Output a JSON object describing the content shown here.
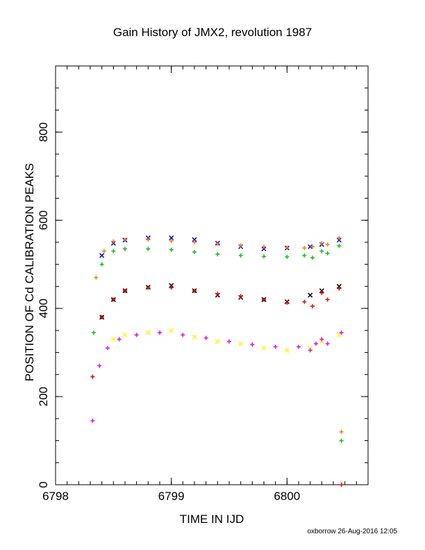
{
  "chart_data": {
    "type": "scatter",
    "title": "Gain History of JMX2, revolution 1987",
    "xlabel": "TIME IN IJD",
    "ylabel": "POSITION OF Cd CALIBRATION PEAKS",
    "xlim": [
      6798,
      6800.7
    ],
    "ylim": [
      0,
      950
    ],
    "xticks": [
      "6798",
      "6799",
      "6800"
    ],
    "yticks": [
      "0",
      "200",
      "400",
      "600",
      "800"
    ],
    "grid": false,
    "legend": "none",
    "series": [
      {
        "color": "#0000ff",
        "marker": "x",
        "x": [
          6798.4,
          6798.5,
          6798.6,
          6798.8,
          6799.0,
          6799.2,
          6799.4,
          6799.6,
          6799.8,
          6800.0,
          6800.2,
          6800.3,
          6800.45
        ],
        "y": [
          520,
          548,
          555,
          560,
          560,
          556,
          548,
          540,
          535,
          537,
          540,
          545,
          555
        ]
      },
      {
        "color": "#ff8000",
        "marker": "+",
        "x": [
          6798.35,
          6798.42,
          6798.5,
          6798.6,
          6798.8,
          6799.0,
          6799.2,
          6799.4,
          6799.6,
          6799.8,
          6800.0,
          6800.15,
          6800.22,
          6800.3,
          6800.35,
          6800.45,
          6800.47
        ],
        "y": [
          470,
          530,
          552,
          556,
          556,
          553,
          550,
          547,
          543,
          540,
          538,
          537,
          540,
          548,
          545,
          560,
          120
        ]
      },
      {
        "color": "#00cc00",
        "marker": "+",
        "x": [
          6798.33,
          6798.4,
          6798.5,
          6798.6,
          6798.8,
          6799.0,
          6799.2,
          6799.4,
          6799.6,
          6799.8,
          6800.0,
          6800.15,
          6800.22,
          6800.3,
          6800.35,
          6800.45,
          6800.47
        ],
        "y": [
          345,
          500,
          530,
          535,
          535,
          533,
          528,
          523,
          520,
          518,
          517,
          520,
          515,
          530,
          525,
          542,
          100
        ]
      },
      {
        "color": "#000000",
        "marker": "x",
        "x": [
          6798.4,
          6798.5,
          6798.6,
          6798.8,
          6799.0,
          6799.2,
          6799.4,
          6799.6,
          6799.8,
          6800.0,
          6800.2,
          6800.3,
          6800.45
        ],
        "y": [
          380,
          420,
          440,
          448,
          452,
          440,
          430,
          425,
          420,
          415,
          430,
          440,
          450
        ]
      },
      {
        "color": "#ff0000",
        "marker": "+",
        "x": [
          6798.32,
          6798.4,
          6798.5,
          6798.6,
          6798.8,
          6799.0,
          6799.2,
          6799.4,
          6799.6,
          6799.8,
          6800.0,
          6800.15,
          6800.22,
          6800.3,
          6800.35,
          6800.45,
          6800.47
        ],
        "y": [
          245,
          380,
          420,
          440,
          447,
          447,
          440,
          433,
          428,
          420,
          413,
          415,
          405,
          435,
          420,
          445,
          0
        ]
      },
      {
        "color": "#ffff00",
        "marker": "x",
        "x": [
          6798.5,
          6798.6,
          6798.8,
          6799.0,
          6799.2,
          6799.4,
          6799.6,
          6799.8,
          6800.0,
          6800.2,
          6800.3,
          6800.45
        ],
        "y": [
          330,
          340,
          345,
          350,
          335,
          325,
          320,
          310,
          305,
          310,
          325,
          340
        ]
      },
      {
        "color": "#ff00ff",
        "marker": "+",
        "x": [
          6798.32,
          6798.38,
          6798.45,
          6798.55,
          6798.7,
          6798.9,
          6799.1,
          6799.3,
          6799.5,
          6799.7,
          6799.9,
          6800.1,
          6800.2,
          6800.25,
          6800.3,
          6800.35,
          6800.47
        ],
        "y": [
          145,
          270,
          310,
          330,
          340,
          345,
          340,
          333,
          325,
          318,
          313,
          313,
          305,
          320,
          330,
          320,
          345
        ]
      }
    ]
  },
  "footer": "oxborrow 26-Aug-2016 12:05"
}
